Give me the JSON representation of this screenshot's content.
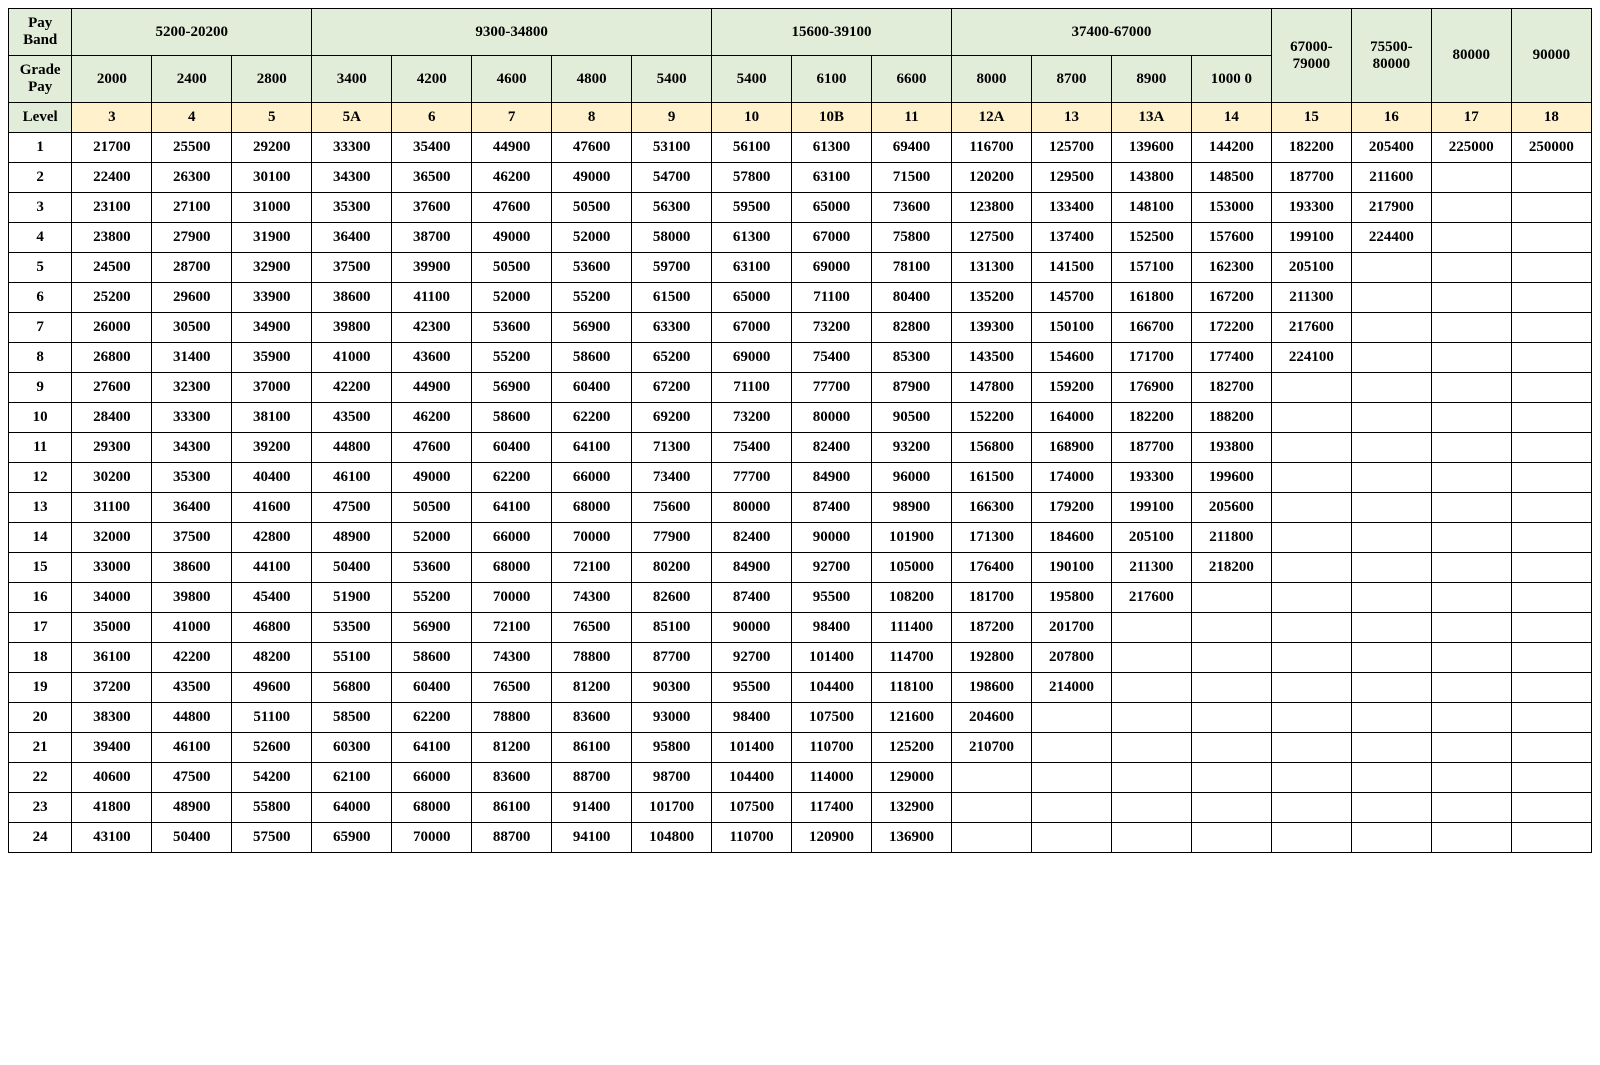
{
  "headers": {
    "pay_band_label": "Pay Band",
    "grade_pay_label": "Grade Pay",
    "level_label": "Level",
    "pay_bands": [
      "5200-20200",
      "9300-34800",
      "15600-39100",
      "37400-67000",
      "67000-79000",
      "75500-80000",
      "80000",
      "90000"
    ],
    "pay_band_spans": [
      3,
      5,
      3,
      4,
      1,
      1,
      1,
      1
    ],
    "grade_pay": [
      "2000",
      "2400",
      "2800",
      "3400",
      "4200",
      "4600",
      "4800",
      "5400",
      "5400",
      "6100",
      "6600",
      "8000",
      "8700",
      "8900",
      "1000 0",
      "",
      "",
      "",
      ""
    ],
    "levels": [
      "3",
      "4",
      "5",
      "5A",
      "6",
      "7",
      "8",
      "9",
      "10",
      "10B",
      "11",
      "12A",
      "13",
      "13A",
      "14",
      "15",
      "16",
      "17",
      "18"
    ]
  },
  "rows": [
    {
      "n": "1",
      "v": [
        "21700",
        "25500",
        "29200",
        "33300",
        "35400",
        "44900",
        "47600",
        "53100",
        "56100",
        "61300",
        "69400",
        "116700",
        "125700",
        "139600",
        "144200",
        "182200",
        "205400",
        "225000",
        "250000"
      ]
    },
    {
      "n": "2",
      "v": [
        "22400",
        "26300",
        "30100",
        "34300",
        "36500",
        "46200",
        "49000",
        "54700",
        "57800",
        "63100",
        "71500",
        "120200",
        "129500",
        "143800",
        "148500",
        "187700",
        "211600",
        "",
        ""
      ]
    },
    {
      "n": "3",
      "v": [
        "23100",
        "27100",
        "31000",
        "35300",
        "37600",
        "47600",
        "50500",
        "56300",
        "59500",
        "65000",
        "73600",
        "123800",
        "133400",
        "148100",
        "153000",
        "193300",
        "217900",
        "",
        ""
      ]
    },
    {
      "n": "4",
      "v": [
        "23800",
        "27900",
        "31900",
        "36400",
        "38700",
        "49000",
        "52000",
        "58000",
        "61300",
        "67000",
        "75800",
        "127500",
        "137400",
        "152500",
        "157600",
        "199100",
        "224400",
        "",
        ""
      ]
    },
    {
      "n": "5",
      "v": [
        "24500",
        "28700",
        "32900",
        "37500",
        "39900",
        "50500",
        "53600",
        "59700",
        "63100",
        "69000",
        "78100",
        "131300",
        "141500",
        "157100",
        "162300",
        "205100",
        "",
        "",
        ""
      ]
    },
    {
      "n": "6",
      "v": [
        "25200",
        "29600",
        "33900",
        "38600",
        "41100",
        "52000",
        "55200",
        "61500",
        "65000",
        "71100",
        "80400",
        "135200",
        "145700",
        "161800",
        "167200",
        "211300",
        "",
        "",
        ""
      ]
    },
    {
      "n": "7",
      "v": [
        "26000",
        "30500",
        "34900",
        "39800",
        "42300",
        "53600",
        "56900",
        "63300",
        "67000",
        "73200",
        "82800",
        "139300",
        "150100",
        "166700",
        "172200",
        "217600",
        "",
        "",
        ""
      ]
    },
    {
      "n": "8",
      "v": [
        "26800",
        "31400",
        "35900",
        "41000",
        "43600",
        "55200",
        "58600",
        "65200",
        "69000",
        "75400",
        "85300",
        "143500",
        "154600",
        "171700",
        "177400",
        "224100",
        "",
        "",
        ""
      ]
    },
    {
      "n": "9",
      "v": [
        "27600",
        "32300",
        "37000",
        "42200",
        "44900",
        "56900",
        "60400",
        "67200",
        "71100",
        "77700",
        "87900",
        "147800",
        "159200",
        "176900",
        "182700",
        "",
        "",
        "",
        ""
      ]
    },
    {
      "n": "10",
      "v": [
        "28400",
        "33300",
        "38100",
        "43500",
        "46200",
        "58600",
        "62200",
        "69200",
        "73200",
        "80000",
        "90500",
        "152200",
        "164000",
        "182200",
        "188200",
        "",
        "",
        "",
        ""
      ]
    },
    {
      "n": "11",
      "v": [
        "29300",
        "34300",
        "39200",
        "44800",
        "47600",
        "60400",
        "64100",
        "71300",
        "75400",
        "82400",
        "93200",
        "156800",
        "168900",
        "187700",
        "193800",
        "",
        "",
        "",
        ""
      ]
    },
    {
      "n": "12",
      "v": [
        "30200",
        "35300",
        "40400",
        "46100",
        "49000",
        "62200",
        "66000",
        "73400",
        "77700",
        "84900",
        "96000",
        "161500",
        "174000",
        "193300",
        "199600",
        "",
        "",
        "",
        ""
      ]
    },
    {
      "n": "13",
      "v": [
        "31100",
        "36400",
        "41600",
        "47500",
        "50500",
        "64100",
        "68000",
        "75600",
        "80000",
        "87400",
        "98900",
        "166300",
        "179200",
        "199100",
        "205600",
        "",
        "",
        "",
        ""
      ]
    },
    {
      "n": "14",
      "v": [
        "32000",
        "37500",
        "42800",
        "48900",
        "52000",
        "66000",
        "70000",
        "77900",
        "82400",
        "90000",
        "101900",
        "171300",
        "184600",
        "205100",
        "211800",
        "",
        "",
        "",
        ""
      ]
    },
    {
      "n": "15",
      "v": [
        "33000",
        "38600",
        "44100",
        "50400",
        "53600",
        "68000",
        "72100",
        "80200",
        "84900",
        "92700",
        "105000",
        "176400",
        "190100",
        "211300",
        "218200",
        "",
        "",
        "",
        ""
      ]
    },
    {
      "n": "16",
      "v": [
        "34000",
        "39800",
        "45400",
        "51900",
        "55200",
        "70000",
        "74300",
        "82600",
        "87400",
        "95500",
        "108200",
        "181700",
        "195800",
        "217600",
        "",
        "",
        "",
        "",
        ""
      ]
    },
    {
      "n": "17",
      "v": [
        "35000",
        "41000",
        "46800",
        "53500",
        "56900",
        "72100",
        "76500",
        "85100",
        "90000",
        "98400",
        "111400",
        "187200",
        "201700",
        "",
        "",
        "",
        "",
        "",
        ""
      ]
    },
    {
      "n": "18",
      "v": [
        "36100",
        "42200",
        "48200",
        "55100",
        "58600",
        "74300",
        "78800",
        "87700",
        "92700",
        "101400",
        "114700",
        "192800",
        "207800",
        "",
        "",
        "",
        "",
        "",
        ""
      ]
    },
    {
      "n": "19",
      "v": [
        "37200",
        "43500",
        "49600",
        "56800",
        "60400",
        "76500",
        "81200",
        "90300",
        "95500",
        "104400",
        "118100",
        "198600",
        "214000",
        "",
        "",
        "",
        "",
        "",
        ""
      ]
    },
    {
      "n": "20",
      "v": [
        "38300",
        "44800",
        "51100",
        "58500",
        "62200",
        "78800",
        "83600",
        "93000",
        "98400",
        "107500",
        "121600",
        "204600",
        "",
        "",
        "",
        "",
        "",
        "",
        ""
      ]
    },
    {
      "n": "21",
      "v": [
        "39400",
        "46100",
        "52600",
        "60300",
        "64100",
        "81200",
        "86100",
        "95800",
        "101400",
        "110700",
        "125200",
        "210700",
        "",
        "",
        "",
        "",
        "",
        "",
        ""
      ]
    },
    {
      "n": "22",
      "v": [
        "40600",
        "47500",
        "54200",
        "62100",
        "66000",
        "83600",
        "88700",
        "98700",
        "104400",
        "114000",
        "129000",
        "",
        "",
        "",
        "",
        "",
        "",
        "",
        ""
      ]
    },
    {
      "n": "23",
      "v": [
        "41800",
        "48900",
        "55800",
        "64000",
        "68000",
        "86100",
        "91400",
        "101700",
        "107500",
        "117400",
        "132900",
        "",
        "",
        "",
        "",
        "",
        "",
        "",
        ""
      ]
    },
    {
      "n": "24",
      "v": [
        "43100",
        "50400",
        "57500",
        "65900",
        "70000",
        "88700",
        "94100",
        "104800",
        "110700",
        "120900",
        "136900",
        "",
        "",
        "",
        "",
        "",
        "",
        "",
        ""
      ]
    }
  ],
  "style": {
    "header_bg": "#e2edd9",
    "level_bg": "#fff1cc",
    "body_bg": "#ffffff",
    "border_color": "#000000",
    "font_family": "Times New Roman",
    "font_weight": "bold"
  }
}
